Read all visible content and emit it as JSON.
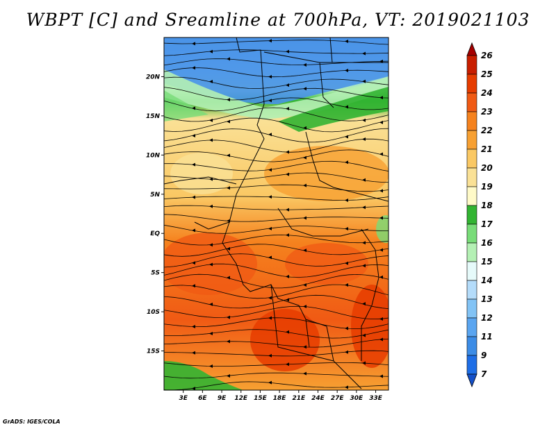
{
  "title": "WBPT [C] and Sreamline at 700hPa, VT: 2019021103",
  "footer": "GrADS: IGES/COLA",
  "map": {
    "variable": "wet-bulb potential temperature with streamlines",
    "lat_labels": [
      "20N",
      "15N",
      "10N",
      "5N",
      "EQ",
      "5S",
      "10S",
      "15S"
    ],
    "lat_values": [
      20,
      15,
      10,
      5,
      0,
      -5,
      -10,
      -15
    ],
    "lon_labels": [
      "3E",
      "6E",
      "9E",
      "12E",
      "15E",
      "18E",
      "21E",
      "24E",
      "27E",
      "30E",
      "33E"
    ],
    "lon_values": [
      3,
      6,
      9,
      12,
      15,
      18,
      21,
      24,
      27,
      30,
      33
    ],
    "lon_range": [
      0,
      35
    ],
    "lat_range": [
      -20,
      25
    ]
  },
  "colorbar": {
    "labels": [
      "26",
      "25",
      "24",
      "23",
      "22",
      "21",
      "20",
      "19",
      "18",
      "17",
      "16",
      "15",
      "14",
      "13",
      "12",
      "11",
      "9",
      "7"
    ],
    "colors": [
      "#a50000",
      "#c81e00",
      "#e63c00",
      "#f05a14",
      "#f5821e",
      "#f7a032",
      "#fac864",
      "#fae196",
      "#fffac8",
      "#32b432",
      "#78dc78",
      "#b4f0b4",
      "#e6fafa",
      "#b4dcfa",
      "#82c3f5",
      "#5aa5f0",
      "#3c8ce6",
      "#1e6ee6",
      "#1450c8"
    ]
  },
  "colors": {
    "cold": "#3c8ce6",
    "cool": "#82c3f5",
    "green": "#32b432",
    "pale": "#fae196",
    "warm": "#f7a032",
    "hot": "#e63c00"
  }
}
